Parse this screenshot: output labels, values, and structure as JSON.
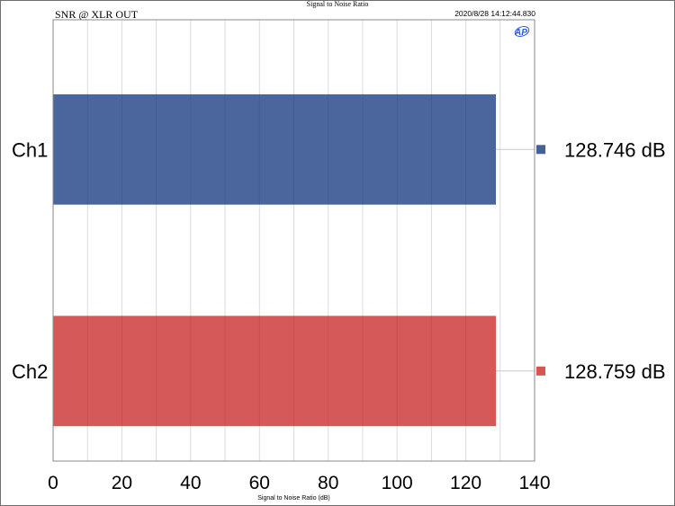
{
  "header": {
    "title": "Signal to Noise Ratio",
    "subtitle": "SNR @ XLR OUT",
    "timestamp": "2020/8/28 14:12:44.830",
    "logo": "AP"
  },
  "chart_data": {
    "type": "bar",
    "orientation": "horizontal",
    "title": "Signal to Noise Ratio",
    "subtitle": "SNR @ XLR OUT",
    "xlabel": "Signal to Noise Ratio (dB)",
    "ylabel": "",
    "xlim": [
      0,
      140
    ],
    "xticks": [
      0,
      20,
      40,
      60,
      80,
      100,
      120,
      140
    ],
    "grid": true,
    "legend": "right",
    "categories": [
      "Ch1",
      "Ch2"
    ],
    "values": [
      128.746,
      128.759
    ],
    "value_labels": [
      "128.746  dB",
      "128.759  dB"
    ],
    "colors": [
      "#44619a",
      "#d55454"
    ]
  }
}
